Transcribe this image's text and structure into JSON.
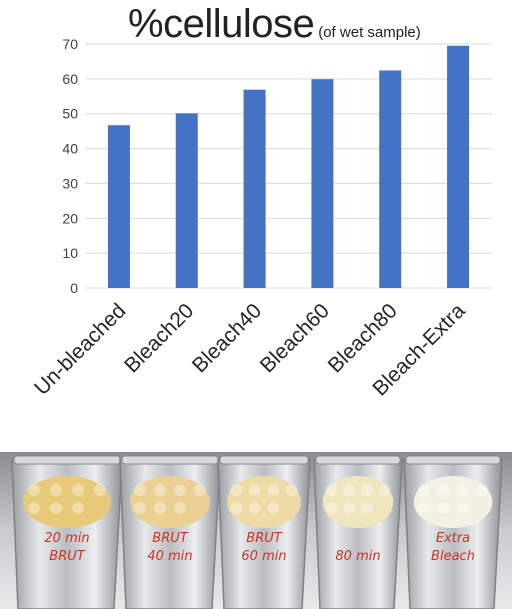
{
  "chart_data": {
    "type": "bar",
    "title": "%cellulose",
    "subtitle": "(of wet sample)",
    "categories": [
      "Un-bleached",
      "Bleach20",
      "Bleach40",
      "Bleach60",
      "Bleach80",
      "Bleach-Extra"
    ],
    "values": [
      46.7,
      50.1,
      56.9,
      59.9,
      62.4,
      69.5
    ],
    "ylim": [
      0,
      70
    ],
    "yticks": [
      0,
      10,
      20,
      30,
      40,
      50,
      60,
      70
    ],
    "grid": true,
    "bar_color": "#4472c4"
  },
  "photo": {
    "trays": [
      {
        "label_line1": "20 min",
        "label_line2": "BRUT",
        "fiber_color": "#e8c979"
      },
      {
        "label_line1": "BRUT",
        "label_line2": "40 min",
        "fiber_color": "#ead193"
      },
      {
        "label_line1": "BRUT",
        "label_line2": "60 min",
        "fiber_color": "#eedaa4"
      },
      {
        "label_line1": "",
        "label_line2": "80 min",
        "fiber_color": "#efe6bd"
      },
      {
        "label_line1": "Extra",
        "label_line2": "Bleach",
        "fiber_color": "#f4f1e4"
      }
    ],
    "marker_color": "#cc3322"
  }
}
